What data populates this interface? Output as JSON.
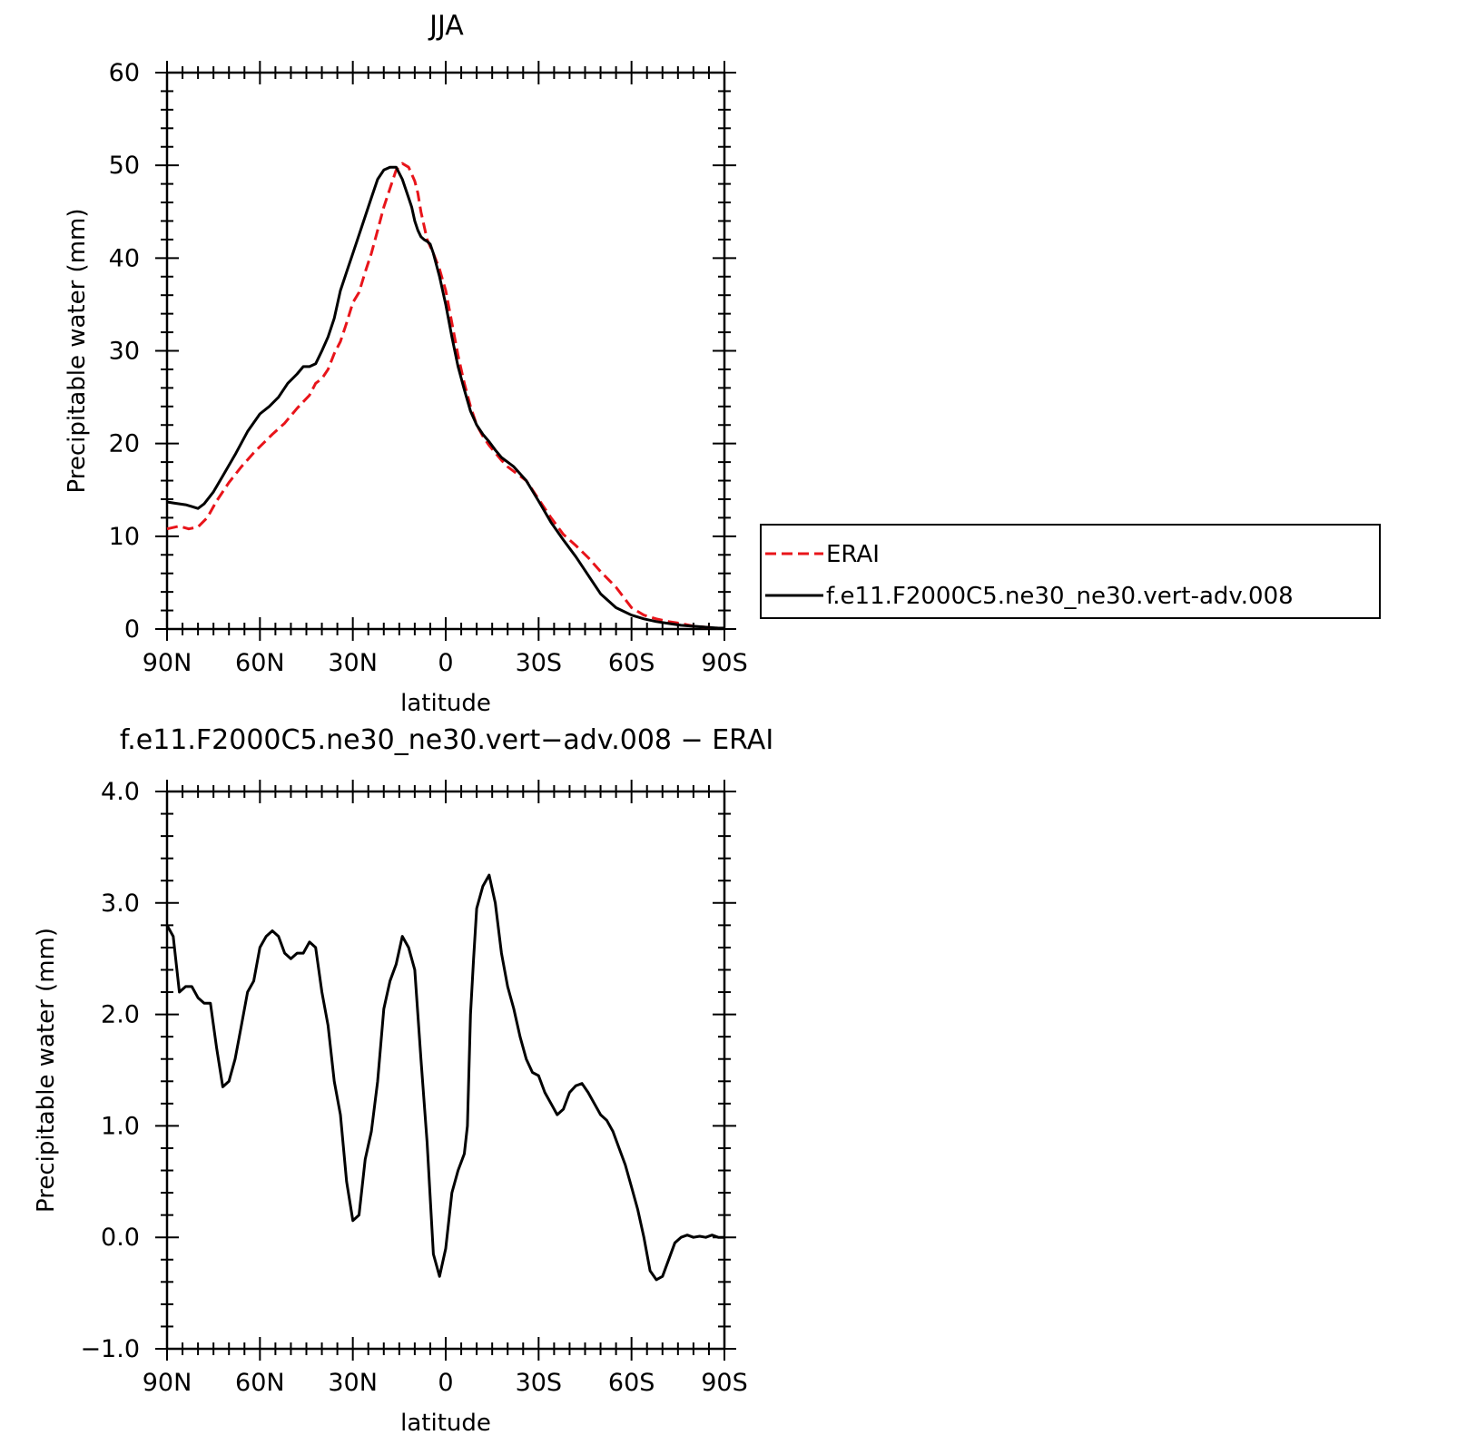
{
  "chart_data": [
    {
      "type": "line",
      "title": "JJA",
      "xlabel": "latitude",
      "ylabel": "Precipitable water (mm)",
      "xlim": [
        90,
        -90
      ],
      "ylim": [
        0,
        60
      ],
      "x_ticks": [
        90,
        60,
        30,
        0,
        -30,
        -60,
        -90
      ],
      "x_tick_labels": [
        "90N",
        "60N",
        "30N",
        "0",
        "30S",
        "60S",
        "90S"
      ],
      "y_ticks": [
        0,
        10,
        20,
        30,
        40,
        50,
        60
      ],
      "y_tick_labels": [
        "0",
        "10",
        "20",
        "30",
        "40",
        "50",
        "60"
      ],
      "legend_position": "right",
      "series": [
        {
          "name": "ERAI",
          "color": "#e8141a",
          "dash": "dashed",
          "x": [
            90,
            86,
            83,
            80,
            77,
            74,
            70,
            66,
            62,
            59,
            56,
            52,
            48,
            44,
            42,
            40,
            38,
            36,
            34,
            32,
            30,
            28,
            26,
            24,
            22,
            20,
            18,
            16,
            14,
            12,
            10,
            9,
            8,
            7,
            6,
            4,
            2,
            0,
            -2,
            -4,
            -6,
            -8,
            -10,
            -12,
            -14,
            -16,
            -18,
            -20,
            -22,
            -26,
            -30,
            -34,
            -38,
            -42,
            -46,
            -50,
            -55,
            -60,
            -64,
            -68,
            -72,
            -76,
            -80,
            -84,
            -88,
            -90
          ],
          "y": [
            10.8,
            11.1,
            10.8,
            11.0,
            12.0,
            13.8,
            15.8,
            17.5,
            19.0,
            20.0,
            21.0,
            22.2,
            23.8,
            25.2,
            26.5,
            27.0,
            28.0,
            29.7,
            31.0,
            33.0,
            35.2,
            36.3,
            38.5,
            40.5,
            43.0,
            45.5,
            47.5,
            49.5,
            50.2,
            49.8,
            48.3,
            47.0,
            45.0,
            43.5,
            42.0,
            40.5,
            38.8,
            36.5,
            33.0,
            29.5,
            26.5,
            24.0,
            22.0,
            20.8,
            19.8,
            19.0,
            18.2,
            17.5,
            17.0,
            16.0,
            14.0,
            12.0,
            10.2,
            9.0,
            7.7,
            6.2,
            4.5,
            2.3,
            1.5,
            1.1,
            0.8,
            0.6,
            0.3,
            0.2,
            0.1,
            0.1
          ]
        },
        {
          "name": "f.e11.F2000C5.ne30_ne30.vert-adv.008",
          "color": "#000000",
          "dash": "solid",
          "x": [
            90,
            88,
            86,
            84,
            82,
            80,
            78,
            75,
            72,
            68,
            64,
            60,
            57,
            54,
            51,
            48,
            46,
            44,
            42,
            40,
            38,
            36,
            34,
            32,
            30,
            28,
            26,
            24,
            22,
            20,
            18,
            16,
            14,
            12,
            11,
            10,
            9,
            8,
            7,
            6,
            5,
            4,
            2,
            0,
            -2,
            -4,
            -6,
            -8,
            -10,
            -12,
            -14,
            -16,
            -18,
            -20,
            -22,
            -26,
            -30,
            -34,
            -38,
            -42,
            -46,
            -50,
            -55,
            -60,
            -64,
            -68,
            -72,
            -76,
            -80,
            -84,
            -88,
            -90
          ],
          "y": [
            13.7,
            13.6,
            13.5,
            13.4,
            13.2,
            13.0,
            13.5,
            14.8,
            16.5,
            18.8,
            21.3,
            23.2,
            24.0,
            25.0,
            26.5,
            27.5,
            28.3,
            28.3,
            28.6,
            30.0,
            31.5,
            33.5,
            36.5,
            38.5,
            40.5,
            42.5,
            44.5,
            46.5,
            48.5,
            49.5,
            49.8,
            49.8,
            48.5,
            46.5,
            45.5,
            44.0,
            43.0,
            42.3,
            42.0,
            41.8,
            41.5,
            40.5,
            38.0,
            35.0,
            31.5,
            28.3,
            25.8,
            23.5,
            22.0,
            21.0,
            20.2,
            19.3,
            18.5,
            18.0,
            17.5,
            16.0,
            13.8,
            11.5,
            9.6,
            7.8,
            5.8,
            3.8,
            2.3,
            1.5,
            1.1,
            0.8,
            0.6,
            0.4,
            0.3,
            0.2,
            0.1,
            0.1
          ]
        }
      ]
    },
    {
      "type": "line",
      "title": "f.e11.F2000C5.ne30_ne30.vert−adv.008 − ERAI",
      "xlabel": "latitude",
      "ylabel": "Precipitable water (mm)",
      "xlim": [
        90,
        -90
      ],
      "ylim": [
        -1.0,
        4.0
      ],
      "x_ticks": [
        90,
        60,
        30,
        0,
        -30,
        -60,
        -90
      ],
      "x_tick_labels": [
        "90N",
        "60N",
        "30N",
        "0",
        "30S",
        "60S",
        "90S"
      ],
      "y_ticks": [
        -1.0,
        0.0,
        1.0,
        2.0,
        3.0,
        4.0
      ],
      "y_tick_labels": [
        "−1.0",
        "0.0",
        "1.0",
        "2.0",
        "3.0",
        "4.0"
      ],
      "series": [
        {
          "color": "#000000",
          "dash": "solid",
          "x": [
            90,
            88,
            86,
            84,
            82,
            80,
            78,
            76,
            74,
            72,
            70,
            68,
            66,
            64,
            62,
            60,
            58,
            56,
            54,
            52,
            50,
            48,
            46,
            44,
            42,
            40,
            38,
            36,
            34,
            32,
            30,
            28,
            26,
            24,
            22,
            20,
            18,
            16,
            14,
            12,
            10,
            8,
            6,
            4,
            2,
            0,
            -2,
            -4,
            -6,
            -7,
            -8,
            -9,
            -10,
            -12,
            -14,
            -16,
            -18,
            -20,
            -22,
            -24,
            -26,
            -28,
            -30,
            -32,
            -34,
            -36,
            -38,
            -40,
            -42,
            -44,
            -46,
            -48,
            -50,
            -52,
            -54,
            -56,
            -58,
            -60,
            -62,
            -64,
            -66,
            -68,
            -70,
            -72,
            -74,
            -76,
            -78,
            -80,
            -82,
            -84,
            -86,
            -88,
            -90
          ],
          "y": [
            2.8,
            2.7,
            2.2,
            2.25,
            2.25,
            2.15,
            2.1,
            2.1,
            1.7,
            1.35,
            1.4,
            1.6,
            1.9,
            2.2,
            2.3,
            2.6,
            2.7,
            2.75,
            2.7,
            2.55,
            2.5,
            2.55,
            2.55,
            2.65,
            2.6,
            2.2,
            1.9,
            1.4,
            1.1,
            0.5,
            0.15,
            0.2,
            0.7,
            0.95,
            1.4,
            2.05,
            2.3,
            2.45,
            2.7,
            2.6,
            2.4,
            1.6,
            0.85,
            -0.15,
            -0.35,
            -0.1,
            0.4,
            0.6,
            0.75,
            1.0,
            2.0,
            2.5,
            2.95,
            3.15,
            3.25,
            3.0,
            2.55,
            2.25,
            2.05,
            1.8,
            1.6,
            1.48,
            1.45,
            1.3,
            1.2,
            1.1,
            1.15,
            1.3,
            1.36,
            1.38,
            1.3,
            1.2,
            1.1,
            1.05,
            0.95,
            0.8,
            0.65,
            0.45,
            0.25,
            0.0,
            -0.3,
            -0.38,
            -0.35,
            -0.2,
            -0.05,
            0.0,
            0.02,
            0.0,
            0.01,
            0.0,
            0.02,
            0.0,
            0.0
          ]
        }
      ]
    }
  ]
}
